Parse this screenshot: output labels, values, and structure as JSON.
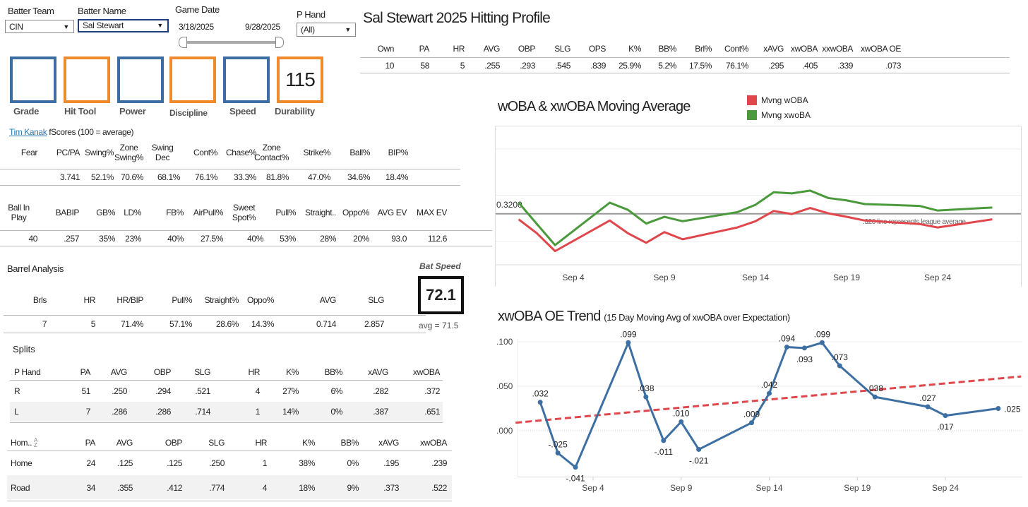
{
  "filters": {
    "batter_team": {
      "label": "Batter Team",
      "value": "CIN"
    },
    "batter_name": {
      "label": "Batter Name",
      "value": "Sal Stewart"
    },
    "game_date": {
      "label": "Game Date",
      "start": "3/18/2025",
      "end": "9/28/2025"
    },
    "p_hand": {
      "label": "P Hand",
      "value": "(All)"
    }
  },
  "scores": [
    {
      "label": "Grade",
      "value": "",
      "color": "#3c6ea3"
    },
    {
      "label": "Hit Tool",
      "value": "",
      "color": "#ef8b2c"
    },
    {
      "label": "Power",
      "value": "",
      "color": "#3c6ea3"
    },
    {
      "label": "Discipline",
      "value": "",
      "color": "#ef8b2c"
    },
    {
      "label": "Speed",
      "value": "",
      "color": "#3c6ea3"
    },
    {
      "label": "Durability",
      "value": "115",
      "color": "#ef8b2c"
    }
  ],
  "profile": {
    "title": "Sal Stewart 2025 Hitting Profile",
    "headers": [
      "Own",
      "PA",
      "HR",
      "AVG",
      "OBP",
      "SLG",
      "OPS",
      "K%",
      "BB%",
      "Brl%",
      "Cont%",
      "xAVG",
      "xwOBA",
      "xxwOBA",
      "xwOBA OE"
    ],
    "values": [
      "10",
      "58",
      "5",
      ".255",
      ".293",
      ".545",
      ".839",
      "25.9%",
      "5.2%",
      "17.5%",
      "76.1%",
      ".295",
      ".405",
      ".339",
      ".073"
    ]
  },
  "fscores": {
    "link": "Tim Kanak",
    "caption": "fScores (100 = average)",
    "headers1": [
      "Fear",
      "PC/PA",
      "Swing%",
      "Zone Swing%",
      "Swing Dec",
      "Cont%",
      "Chase%",
      "Zone Contact%",
      "Strike%",
      "Ball%",
      "BIP%"
    ],
    "values1": [
      "",
      "3.741",
      "52.1%",
      "70.6%",
      "68.1%",
      "76.1%",
      "33.3%",
      "81.8%",
      "47.0%",
      "34.6%",
      "18.4%"
    ],
    "headers2": [
      "Ball In Play",
      "BABIP",
      "GB%",
      "LD%",
      "FB%",
      "AirPull%",
      "Sweet Spot%",
      "Pull%",
      "Straight..",
      "Oppo%",
      "AVG EV",
      "MAX EV"
    ],
    "values2": [
      "40",
      ".257",
      "35%",
      "23%",
      "40%",
      "27.5%",
      "40%",
      "53%",
      "28%",
      "20%",
      "93.0",
      "112.6"
    ]
  },
  "barrel": {
    "title": "Barrel Analysis",
    "headers": [
      "Brls",
      "HR",
      "HR/BIP",
      "Pull%",
      "Straight%",
      "Oppo%",
      "AVG",
      "SLG"
    ],
    "values": [
      "7",
      "5",
      "71.4%",
      "57.1%",
      "28.6%",
      "14.3%",
      "0.714",
      "2.857"
    ]
  },
  "bat_speed": {
    "label": "Bat Speed",
    "value": "72.1",
    "avg": "avg = 71.5"
  },
  "splits": {
    "title": "Splits",
    "hand_headers": [
      "P Hand",
      "PA",
      "AVG",
      "OBP",
      "SLG",
      "HR",
      "K%",
      "BB%",
      "xAVG",
      "xwOBA"
    ],
    "hand_rows": [
      [
        "R",
        "51",
        ".250",
        ".294",
        ".521",
        "4",
        "27%",
        "6%",
        ".282",
        ".372"
      ],
      [
        "L",
        "7",
        ".286",
        ".286",
        ".714",
        "1",
        "14%",
        "0%",
        ".387",
        ".651"
      ]
    ],
    "home_headers": [
      "Hom..",
      "PA",
      "AVG",
      "OBP",
      "SLG",
      "HR",
      "K%",
      "BB%",
      "xAVG",
      "xwOBA"
    ],
    "home_rows": [
      [
        "Home",
        "24",
        ".125",
        ".125",
        ".250",
        "1",
        "38%",
        "0%",
        ".195",
        ".239"
      ],
      [
        "Road",
        "34",
        ".355",
        ".412",
        ".774",
        "4",
        "18%",
        "9%",
        ".373",
        ".522"
      ]
    ]
  },
  "chart_data": [
    {
      "type": "line",
      "title": "wOBA & xwOBA Moving Average",
      "x_ticks": [
        4,
        9,
        14,
        19,
        24
      ],
      "x_tick_labels": [
        "Sep 4",
        "Sep 9",
        "Sep 14",
        "Sep 19",
        "Sep 24"
      ],
      "ylim": [
        0.1,
        0.7
      ],
      "gridlines": [
        0.2,
        0.4,
        0.6
      ],
      "reference": {
        "value": 0.32,
        "label": "0.3200",
        "note": ".320 line represents league average"
      },
      "legend_position": "top",
      "x": [
        1,
        2,
        3,
        6,
        7,
        8,
        9,
        10,
        13,
        14,
        15,
        16,
        17,
        18,
        19,
        20,
        23,
        24,
        27
      ],
      "series": [
        {
          "name": "Mvng wOBA",
          "color": "#e0474c",
          "values": [
            0.296,
            0.236,
            0.159,
            0.291,
            0.236,
            0.195,
            0.241,
            0.21,
            0.261,
            0.288,
            0.332,
            0.319,
            0.345,
            0.322,
            0.307,
            0.291,
            0.276,
            0.261,
            0.296
          ]
        },
        {
          "name": "Mvng xwoBA",
          "color": "#4a9a3c",
          "values": [
            0.368,
            0.276,
            0.185,
            0.368,
            0.337,
            0.278,
            0.307,
            0.288,
            0.327,
            0.359,
            0.413,
            0.408,
            0.42,
            0.388,
            0.378,
            0.362,
            0.354,
            0.334,
            0.347
          ]
        }
      ]
    },
    {
      "type": "line",
      "title": "xwOBA OE Trend",
      "subtitle": "(15 Day Moving Avg of xwOBA over Expectation)",
      "x_ticks": [
        4,
        9,
        14,
        19,
        24
      ],
      "x_tick_labels": [
        "Sep 4",
        "Sep 9",
        "Sep 14",
        "Sep 19",
        "Sep 24"
      ],
      "ylim": [
        -0.052,
        0.105
      ],
      "y_ticks": [
        0.0,
        0.05,
        0.1
      ],
      "y_tick_labels": [
        ".000",
        ".050",
        ".100"
      ],
      "x": [
        1,
        2,
        3,
        6,
        7,
        8,
        9,
        10,
        13,
        14,
        15,
        16,
        17,
        18,
        20,
        23,
        24,
        27
      ],
      "series": [
        {
          "name": "xwOBA OE",
          "color": "#3d6fa3",
          "values": [
            0.032,
            -0.025,
            -0.041,
            0.099,
            0.038,
            -0.011,
            0.01,
            -0.021,
            0.009,
            0.042,
            0.094,
            0.093,
            0.099,
            0.073,
            0.038,
            0.027,
            0.017,
            0.025
          ],
          "labels": [
            ".032",
            "-.025",
            "-.041",
            ".099",
            ".038",
            "-.011",
            ".010",
            "-.021",
            ".009",
            ".042",
            ".094",
            ".093",
            ".099",
            ".073",
            ".038",
            ".027",
            ".017",
            ".025"
          ]
        }
      ],
      "trend": {
        "color": "#e0474c",
        "x": [
          -0.4,
          28.3
        ],
        "values": [
          0.009,
          0.061
        ]
      }
    }
  ]
}
